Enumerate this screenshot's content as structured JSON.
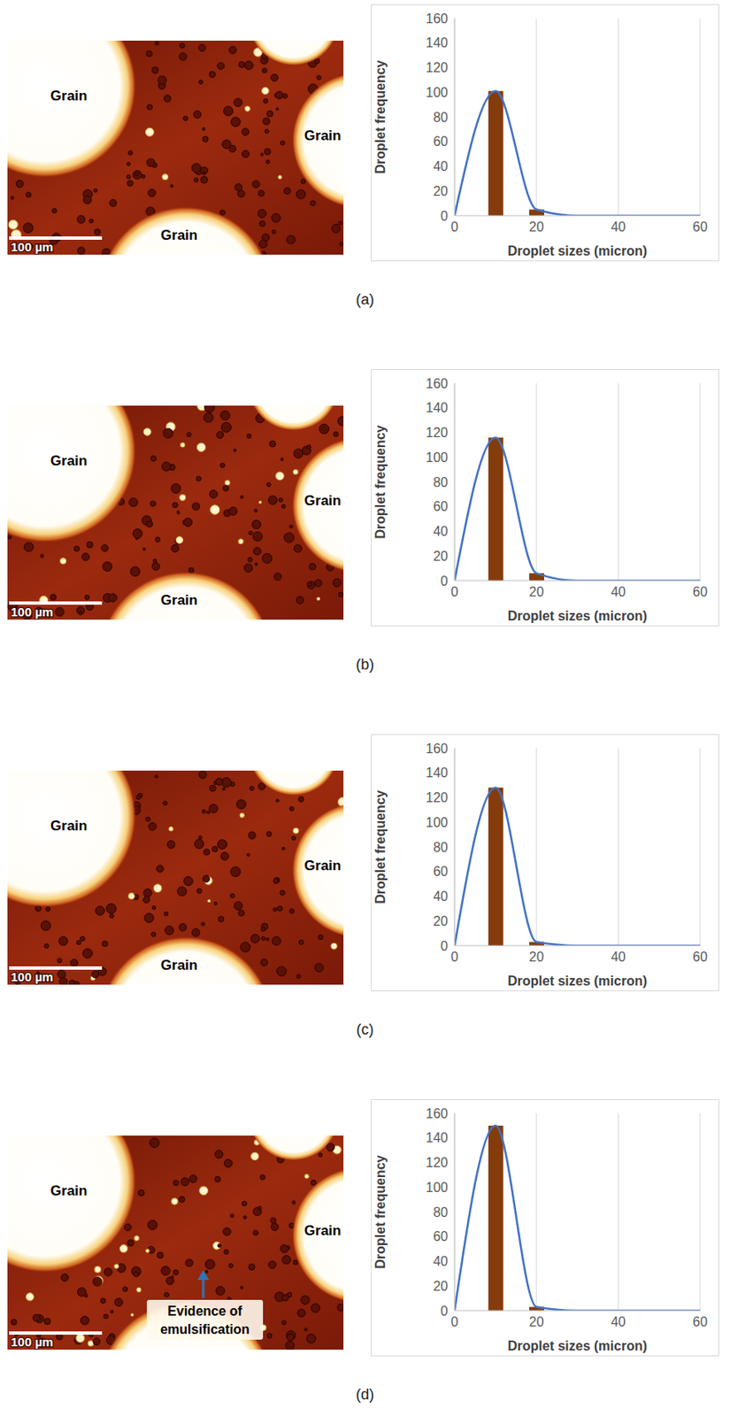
{
  "chart_data": [
    {
      "type": "bar",
      "panel": "(a)",
      "x": [
        0,
        10,
        20,
        30,
        40,
        50,
        60
      ],
      "series": [
        {
          "type": "bar",
          "color": "#843c0c",
          "values": [
            0,
            101,
            5,
            0,
            0,
            0,
            0
          ]
        },
        {
          "type": "line",
          "line_style": "smooth",
          "color": "#4472c4",
          "values": [
            0,
            101,
            5,
            0,
            0,
            0,
            0
          ]
        }
      ],
      "x_label": "Droplet sizes (micron)",
      "y_label": "Droplet frequency",
      "xlim": [
        0,
        60
      ],
      "xticks": [
        0,
        20,
        40,
        60
      ],
      "ylim": [
        0,
        160
      ],
      "yticks": [
        0,
        20,
        40,
        60,
        80,
        100,
        120,
        140,
        160
      ],
      "grid": "x",
      "micrograph": {
        "labels": [
          "Grain",
          "Grain",
          "Grain"
        ],
        "scale_bar": "100 µm"
      }
    },
    {
      "type": "bar",
      "panel": "(b)",
      "x": [
        0,
        10,
        20,
        30,
        40,
        50,
        60
      ],
      "series": [
        {
          "type": "bar",
          "color": "#843c0c",
          "values": [
            0,
            116,
            6,
            0,
            0,
            0,
            0
          ]
        },
        {
          "type": "line",
          "line_style": "smooth",
          "color": "#4472c4",
          "values": [
            0,
            116,
            6,
            0,
            0,
            0,
            0
          ]
        }
      ],
      "x_label": "Droplet sizes (micron)",
      "y_label": "Droplet frequency",
      "xlim": [
        0,
        60
      ],
      "xticks": [
        0,
        20,
        40,
        60
      ],
      "ylim": [
        0,
        160
      ],
      "yticks": [
        0,
        20,
        40,
        60,
        80,
        100,
        120,
        140,
        160
      ],
      "grid": "x",
      "micrograph": {
        "labels": [
          "Grain",
          "Grain",
          "Grain"
        ],
        "scale_bar": "100 µm"
      }
    },
    {
      "type": "bar",
      "panel": "(c)",
      "x": [
        0,
        10,
        20,
        30,
        40,
        50,
        60
      ],
      "series": [
        {
          "type": "bar",
          "color": "#843c0c",
          "values": [
            0,
            128,
            3,
            0,
            0,
            0,
            0
          ]
        },
        {
          "type": "line",
          "line_style": "smooth",
          "color": "#4472c4",
          "values": [
            0,
            128,
            3,
            0,
            0,
            0,
            0
          ]
        }
      ],
      "x_label": "Droplet sizes (micron)",
      "y_label": "Droplet frequency",
      "xlim": [
        0,
        60
      ],
      "xticks": [
        0,
        20,
        40,
        60
      ],
      "ylim": [
        0,
        160
      ],
      "yticks": [
        0,
        20,
        40,
        60,
        80,
        100,
        120,
        140,
        160
      ],
      "grid": "x",
      "micrograph": {
        "labels": [
          "Grain",
          "Grain",
          "Grain"
        ],
        "scale_bar": "100 µm"
      }
    },
    {
      "type": "bar",
      "panel": "(d)",
      "x": [
        0,
        10,
        20,
        30,
        40,
        50,
        60
      ],
      "series": [
        {
          "type": "bar",
          "color": "#843c0c",
          "values": [
            0,
            150,
            3,
            0,
            0,
            0,
            0
          ]
        },
        {
          "type": "line",
          "line_style": "smooth",
          "color": "#4472c4",
          "values": [
            0,
            150,
            3,
            0,
            0,
            0,
            0
          ]
        }
      ],
      "x_label": "Droplet sizes (micron)",
      "y_label": "Droplet frequency",
      "xlim": [
        0,
        60
      ],
      "xticks": [
        0,
        20,
        40,
        60
      ],
      "ylim": [
        0,
        160
      ],
      "yticks": [
        0,
        20,
        40,
        60,
        80,
        100,
        120,
        140,
        160
      ],
      "grid": "x",
      "micrograph": {
        "labels": [
          "Grain",
          "Grain"
        ],
        "scale_bar": "100 µm",
        "annotation": "Evidence of emulsification"
      }
    }
  ]
}
